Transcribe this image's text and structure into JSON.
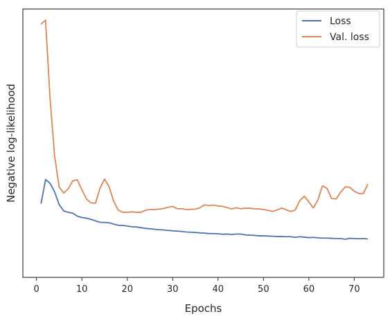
{
  "chart_data": {
    "type": "line",
    "title": "",
    "xlabel": "Epochs",
    "ylabel": "Negative log-likelihood",
    "xlim": [
      -3,
      76.5
    ],
    "ylim": [
      0,
      1
    ],
    "y_ticks_shown": false,
    "x_ticks": [
      0,
      10,
      20,
      30,
      40,
      50,
      60,
      70
    ],
    "x_tick_labels": [
      "0",
      "10",
      "20",
      "30",
      "40",
      "50",
      "60",
      "70"
    ],
    "grid": false,
    "legend_position": "top-right",
    "series": [
      {
        "name": "Loss",
        "color": "#4c72b0",
        "x": [
          1,
          2,
          3,
          4,
          5,
          6,
          7,
          8,
          9,
          10,
          11,
          12,
          13,
          14,
          15,
          16,
          17,
          18,
          19,
          20,
          21,
          22,
          23,
          24,
          25,
          26,
          27,
          28,
          29,
          30,
          31,
          32,
          33,
          34,
          35,
          36,
          37,
          38,
          39,
          40,
          41,
          42,
          43,
          44,
          45,
          46,
          47,
          48,
          49,
          50,
          51,
          52,
          53,
          54,
          55,
          56,
          57,
          58,
          59,
          60,
          61,
          62,
          63,
          64,
          65,
          66,
          67,
          68,
          69,
          70,
          71,
          72,
          73
        ],
        "y": [
          0.188,
          0.295,
          0.278,
          0.24,
          0.184,
          0.156,
          0.15,
          0.146,
          0.133,
          0.127,
          0.124,
          0.119,
          0.112,
          0.106,
          0.105,
          0.104,
          0.098,
          0.093,
          0.092,
          0.089,
          0.086,
          0.085,
          0.082,
          0.079,
          0.077,
          0.075,
          0.073,
          0.072,
          0.07,
          0.068,
          0.067,
          0.065,
          0.063,
          0.062,
          0.061,
          0.059,
          0.058,
          0.056,
          0.056,
          0.055,
          0.053,
          0.054,
          0.052,
          0.054,
          0.054,
          0.05,
          0.049,
          0.048,
          0.046,
          0.046,
          0.045,
          0.044,
          0.043,
          0.043,
          0.042,
          0.042,
          0.039,
          0.042,
          0.04,
          0.038,
          0.039,
          0.037,
          0.036,
          0.036,
          0.035,
          0.034,
          0.034,
          0.031,
          0.035,
          0.034,
          0.033,
          0.034,
          0.032
        ]
      },
      {
        "name": "Val. loss",
        "color": "#dd8452",
        "x": [
          1,
          2,
          3,
          4,
          5,
          6,
          7,
          8,
          9,
          10,
          11,
          12,
          13,
          14,
          15,
          16,
          17,
          18,
          19,
          20,
          21,
          22,
          23,
          24,
          25,
          26,
          27,
          28,
          29,
          30,
          31,
          32,
          33,
          34,
          35,
          36,
          37,
          38,
          39,
          40,
          41,
          42,
          43,
          44,
          45,
          46,
          47,
          48,
          49,
          50,
          51,
          52,
          53,
          54,
          55,
          56,
          57,
          58,
          59,
          60,
          61,
          62,
          63,
          64,
          65,
          66,
          67,
          68,
          69,
          70,
          71,
          72,
          73
        ],
        "y": [
          0.982,
          1.0,
          0.651,
          0.398,
          0.262,
          0.235,
          0.254,
          0.289,
          0.294,
          0.25,
          0.209,
          0.192,
          0.19,
          0.257,
          0.297,
          0.263,
          0.199,
          0.16,
          0.15,
          0.15,
          0.152,
          0.15,
          0.15,
          0.159,
          0.162,
          0.162,
          0.164,
          0.167,
          0.172,
          0.176,
          0.166,
          0.166,
          0.162,
          0.163,
          0.164,
          0.17,
          0.183,
          0.18,
          0.182,
          0.178,
          0.176,
          0.171,
          0.165,
          0.17,
          0.166,
          0.168,
          0.168,
          0.166,
          0.165,
          0.162,
          0.159,
          0.154,
          0.16,
          0.169,
          0.161,
          0.154,
          0.16,
          0.202,
          0.221,
          0.196,
          0.169,
          0.205,
          0.267,
          0.256,
          0.211,
          0.209,
          0.239,
          0.262,
          0.261,
          0.243,
          0.233,
          0.233,
          0.275
        ]
      }
    ]
  }
}
